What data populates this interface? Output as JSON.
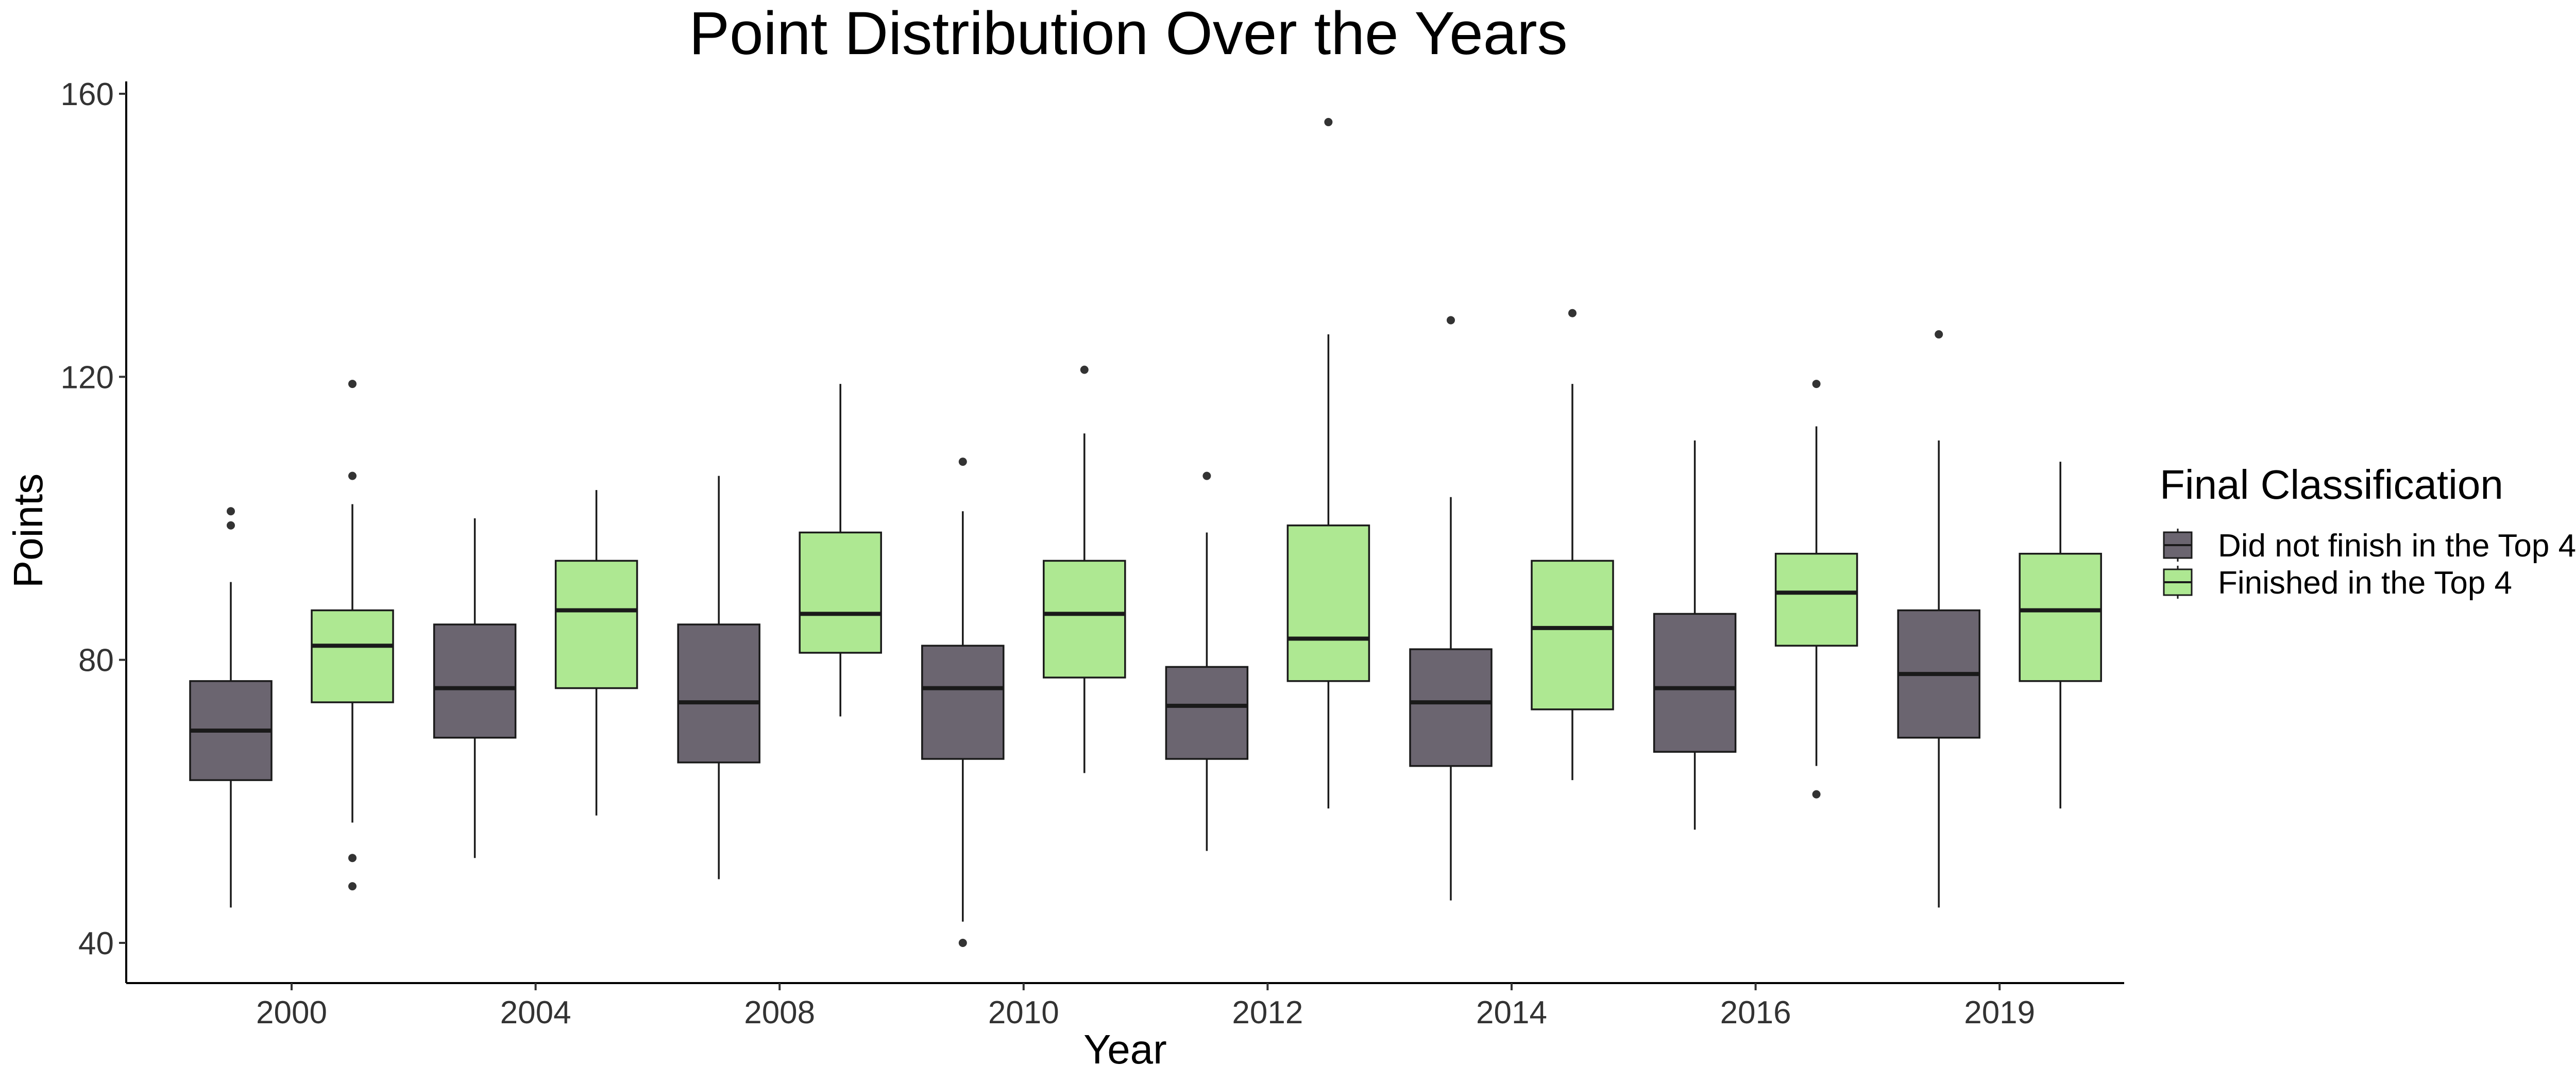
{
  "chart_data": {
    "type": "boxplot",
    "title": "Point Distribution Over the Years",
    "xlabel": "Year",
    "ylabel": "Points",
    "ylim": [
      34,
      161
    ],
    "yticks": [
      40,
      80,
      120,
      160
    ],
    "grid": false,
    "legend_position": "right",
    "legend_title": "Final Classification",
    "categories": [
      "2000",
      "2004",
      "2008",
      "2010",
      "2012",
      "2014",
      "2016",
      "2019"
    ],
    "series": [
      {
        "name": "Did not finish in the Top 4",
        "color": "#6b6570",
        "boxes": [
          {
            "whisker_low": 45,
            "q1": 63,
            "median": 70,
            "q3": 77,
            "whisker_high": 91,
            "outliers": [
              99,
              101
            ]
          },
          {
            "whisker_low": 52,
            "q1": 69,
            "median": 76,
            "q3": 85,
            "whisker_high": 100,
            "outliers": []
          },
          {
            "whisker_low": 49,
            "q1": 65.5,
            "median": 74,
            "q3": 85,
            "whisker_high": 106,
            "outliers": []
          },
          {
            "whisker_low": 43,
            "q1": 66,
            "median": 76,
            "q3": 82,
            "whisker_high": 101,
            "outliers": [
              40,
              108
            ]
          },
          {
            "whisker_low": 53,
            "q1": 66,
            "median": 73.5,
            "q3": 79,
            "whisker_high": 98,
            "outliers": [
              106
            ]
          },
          {
            "whisker_low": 46,
            "q1": 65,
            "median": 74,
            "q3": 81.5,
            "whisker_high": 103,
            "outliers": [
              128
            ]
          },
          {
            "whisker_low": 56,
            "q1": 67,
            "median": 76,
            "q3": 86.5,
            "whisker_high": 111,
            "outliers": []
          },
          {
            "whisker_low": 45,
            "q1": 69,
            "median": 78,
            "q3": 87,
            "whisker_high": 111,
            "outliers": [
              126
            ]
          }
        ]
      },
      {
        "name": "Finished in the Top 4",
        "color": "#aee892",
        "boxes": [
          {
            "whisker_low": 57,
            "q1": 74,
            "median": 82,
            "q3": 87,
            "whisker_high": 102,
            "outliers": [
              48,
              52,
              106,
              119
            ]
          },
          {
            "whisker_low": 58,
            "q1": 76,
            "median": 87,
            "q3": 94,
            "whisker_high": 104,
            "outliers": []
          },
          {
            "whisker_low": 72,
            "q1": 81,
            "median": 86.5,
            "q3": 98,
            "whisker_high": 119,
            "outliers": []
          },
          {
            "whisker_low": 64,
            "q1": 77.5,
            "median": 86.5,
            "q3": 94,
            "whisker_high": 112,
            "outliers": [
              121
            ]
          },
          {
            "whisker_low": 59,
            "q1": 77,
            "median": 83,
            "q3": 99,
            "whisker_high": 126,
            "outliers": [
              156
            ]
          },
          {
            "whisker_low": 63,
            "q1": 73,
            "median": 84.5,
            "q3": 94,
            "whisker_high": 119,
            "outliers": [
              129
            ]
          },
          {
            "whisker_low": 65,
            "q1": 82,
            "median": 89.5,
            "q3": 95,
            "whisker_high": 113,
            "outliers": [
              61,
              119
            ]
          },
          {
            "whisker_low": 59,
            "q1": 77,
            "median": 87,
            "q3": 95,
            "whisker_high": 108,
            "outliers": []
          }
        ]
      }
    ]
  }
}
